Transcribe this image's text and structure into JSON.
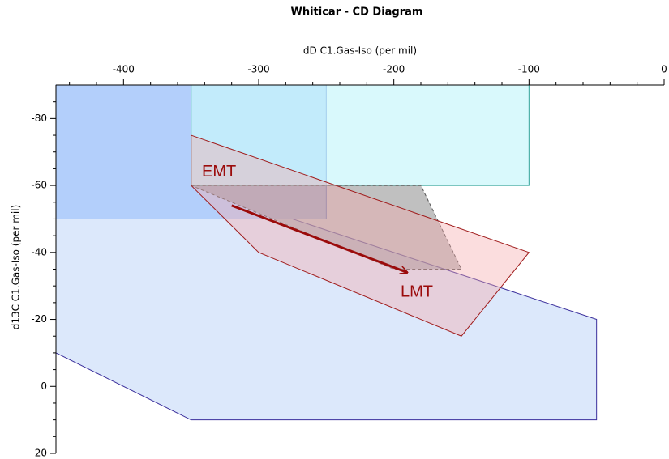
{
  "chart_data": {
    "type": "polygon",
    "title": "Whiticar - CD Diagram",
    "xlabel": "dD C1.Gas-Iso (per mil)",
    "ylabel": "d13C C1.Gas-Iso (per mil)",
    "xlim": [
      -450,
      0
    ],
    "ylim": [
      -90,
      20
    ],
    "y_inverted": true,
    "x_axis_position": "top",
    "xticks": [
      -400,
      -300,
      -200,
      -100,
      0
    ],
    "yticks": [
      -80,
      -60,
      -40,
      -20,
      0,
      20
    ],
    "xminorticks": [
      -440,
      -420,
      -380,
      -360,
      -340,
      -320,
      -280,
      -260,
      -240,
      -220,
      -180,
      -160,
      -140,
      -120,
      -80,
      -60,
      -40,
      -20
    ],
    "yminorticks": [
      -85,
      -75,
      -70,
      -65,
      -55,
      -50,
      -45,
      -35,
      -30,
      -25,
      -15,
      -10,
      -5,
      5,
      10,
      15
    ],
    "series": [
      {
        "color": "#dce8fb",
        "edge": "#3b2f9c",
        "x": [
          -450,
          -350,
          -50,
          -50,
          -350,
          -450
        ],
        "y": [
          -50,
          -60,
          -20,
          10,
          10,
          -10
        ]
      },
      {
        "color": "#b3cffb",
        "edge": "#4a6fd0",
        "x": [
          -450,
          -250,
          -250,
          -450
        ],
        "y": [
          -90,
          -90,
          -50,
          -50
        ]
      },
      {
        "color": "#c9f6fb",
        "edge": "#2fa39a",
        "opacity": 0.7,
        "x": [
          -350,
          -100,
          -100,
          -350
        ],
        "y": [
          -90,
          -90,
          -60,
          -60
        ]
      },
      {
        "color": "#8c8c8c",
        "edge": "#555555",
        "opacity": 0.55,
        "dashed": true,
        "x": [
          -350,
          -180,
          -150,
          -200
        ],
        "y": [
          -60,
          -60,
          -35,
          -35
        ]
      },
      {
        "color": "#f5a9ad",
        "edge": "#a01c1c",
        "opacity": 0.4,
        "x": [
          -350,
          -100,
          -150,
          -300,
          -350
        ],
        "y": [
          -75,
          -40,
          -15,
          -40,
          -60
        ]
      }
    ],
    "arrow": {
      "color": "#9b0b0b",
      "x": [
        -320,
        -190
      ],
      "y": [
        -54,
        -34
      ]
    },
    "annotations": [
      {
        "text": "EMT",
        "x": -342,
        "y": -64,
        "color": "#9b0b0b"
      },
      {
        "text": "LMT",
        "x": -195,
        "y": -28,
        "color": "#9b0b0b"
      }
    ]
  }
}
